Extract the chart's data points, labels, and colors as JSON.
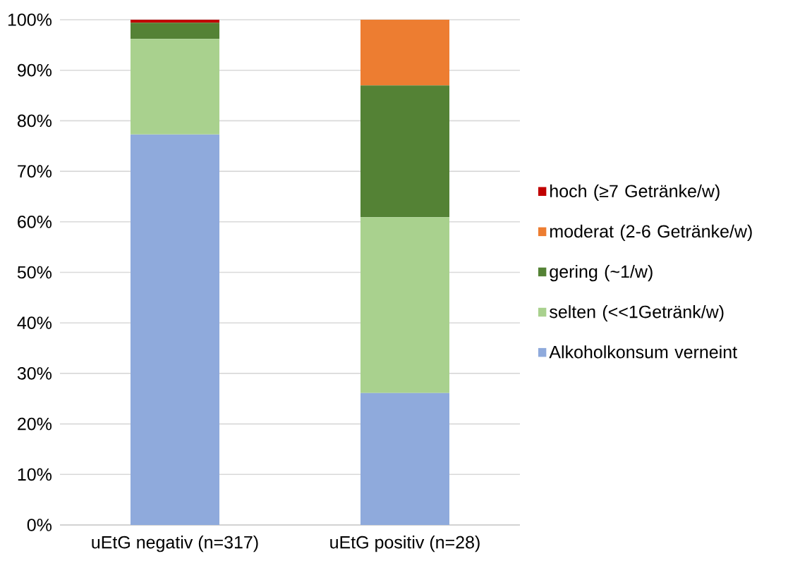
{
  "chart_data": {
    "type": "bar",
    "stacked": true,
    "categories": [
      "uEtG negativ (n=317)",
      "uEtG positiv (n=28)"
    ],
    "series": [
      {
        "name": "Alkoholkonsum verneint",
        "color": "#8faadc",
        "values": [
          77.3,
          26.1
        ]
      },
      {
        "name": "selten (<<1Getränk/w)",
        "color": "#a9d18e",
        "values": [
          18.9,
          34.8
        ]
      },
      {
        "name": "gering (~1/w)",
        "color": "#548235",
        "values": [
          3.2,
          26.1
        ]
      },
      {
        "name": "moderat (2-6 Getränke/w)",
        "color": "#ed7d31",
        "values": [
          0,
          13.0
        ]
      },
      {
        "name": "hoch (≥7 Getränke/w)",
        "color": "#c00000",
        "values": [
          0.6,
          0
        ]
      }
    ],
    "ylim": [
      0,
      100
    ],
    "yticks": [
      {
        "value": 0,
        "label": "0%"
      },
      {
        "value": 10,
        "label": "10%"
      },
      {
        "value": 20,
        "label": "20%"
      },
      {
        "value": 30,
        "label": "30%"
      },
      {
        "value": 40,
        "label": "40%"
      },
      {
        "value": 50,
        "label": "50%"
      },
      {
        "value": 60,
        "label": "60%"
      },
      {
        "value": 70,
        "label": "70%"
      },
      {
        "value": 80,
        "label": "80%"
      },
      {
        "value": 90,
        "label": "90%"
      },
      {
        "value": 100,
        "label": "100%"
      }
    ],
    "grid": "y",
    "legend": "right"
  }
}
